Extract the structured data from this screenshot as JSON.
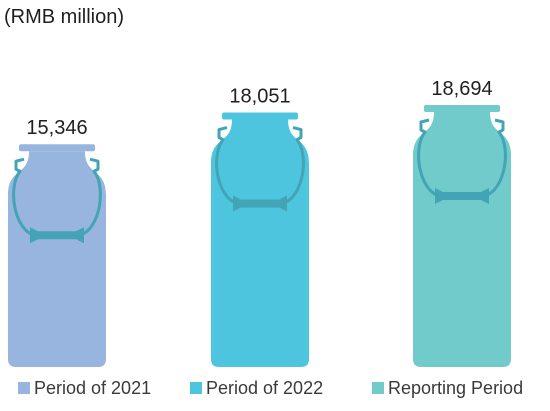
{
  "unit_label": "(RMB million)",
  "chart_data": {
    "type": "bar",
    "categories": [
      "Period of 2021",
      "Period of 2022",
      "Reporting Period"
    ],
    "values": [
      15346,
      18051,
      18694
    ],
    "value_labels": [
      "15,346",
      "18,051",
      "18,694"
    ],
    "colors": [
      "#98b5df",
      "#4ec5de",
      "#72cbcb"
    ],
    "accent_colors": [
      "#43a4b6",
      "#43a4b6",
      "#43a4b6"
    ],
    "ylabel": "(RMB million)",
    "legend_position": "bottom",
    "grid": false,
    "mark_shape": "milk-can"
  }
}
